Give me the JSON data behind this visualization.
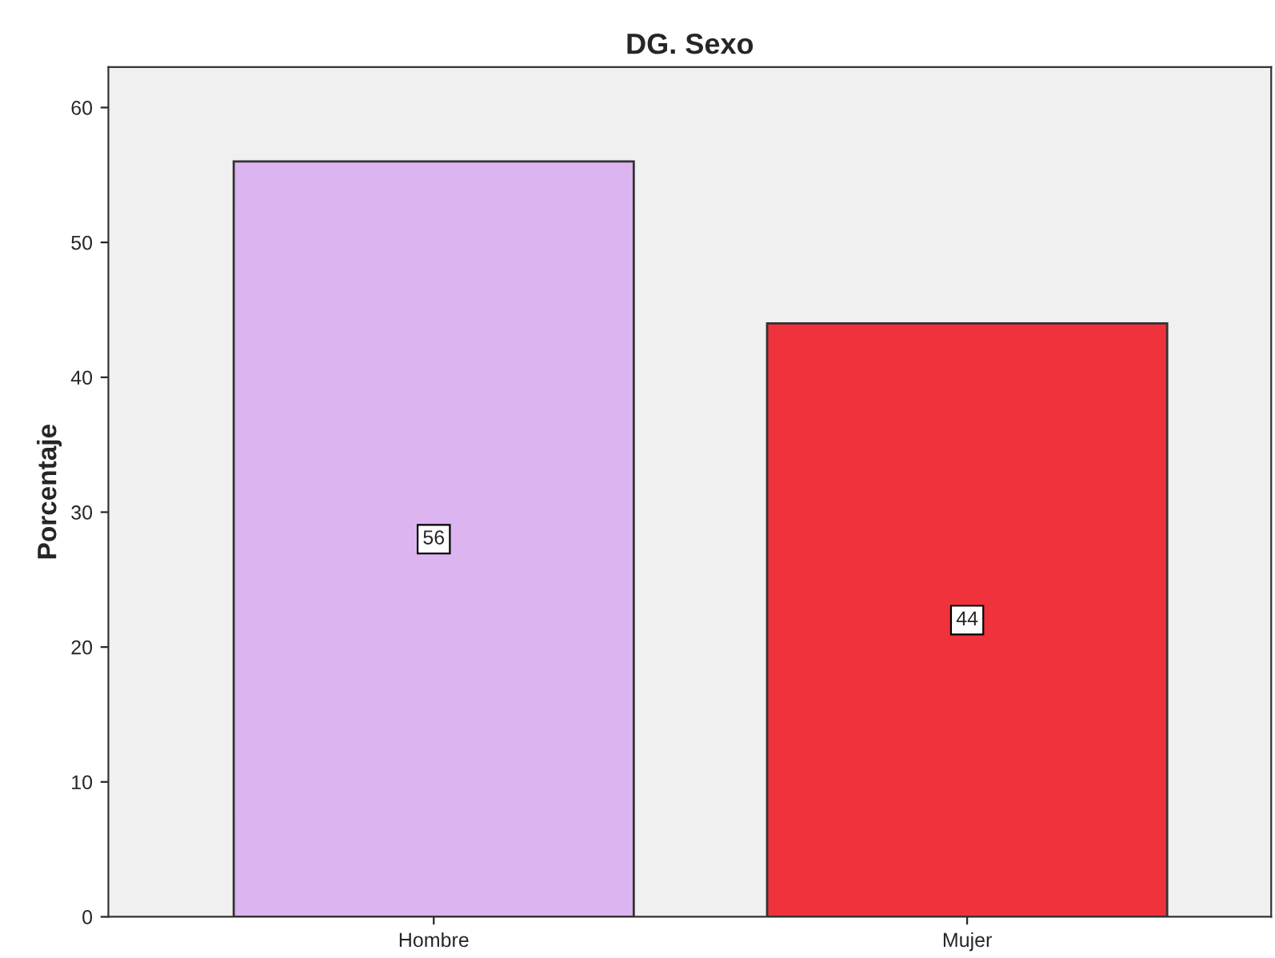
{
  "chart_data": {
    "type": "bar",
    "title": "DG. Sexo",
    "ylabel": "Porcentaje",
    "categories": [
      "Hombre",
      "Mujer"
    ],
    "values": [
      56,
      44
    ],
    "colors": [
      "#dcb4f0",
      "#f0323c"
    ],
    "ylim": [
      0,
      63
    ],
    "yticks": [
      0,
      10,
      20,
      30,
      40,
      50,
      60
    ],
    "data_labels": true,
    "grid": false,
    "legend": false
  }
}
